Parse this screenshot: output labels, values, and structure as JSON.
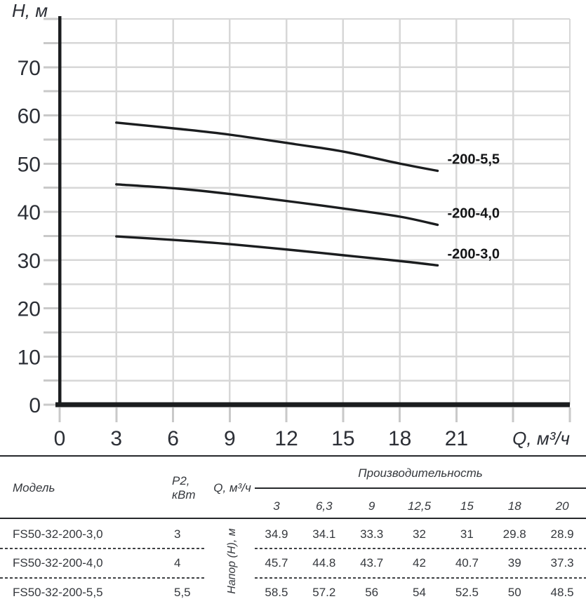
{
  "page": {
    "background": "#ffffff"
  },
  "chart_data": {
    "type": "line",
    "title": "",
    "ylabel": "H, м",
    "xlabel": "Q, м³/ч",
    "xlim": [
      0,
      27
    ],
    "ylim": [
      0,
      80
    ],
    "x_grid_step": 3,
    "y_grid_step": 5,
    "x_ticks_labeled": [
      0,
      3,
      6,
      9,
      12,
      15,
      18,
      21
    ],
    "y_ticks_labeled": [
      0,
      10,
      20,
      30,
      40,
      50,
      60,
      70
    ],
    "grid": true,
    "legend_position": "inline-labels-right-of-curve-end",
    "x": [
      3,
      6.3,
      9,
      12.5,
      15,
      18,
      20
    ],
    "series": [
      {
        "name": "-200-5,5",
        "values": [
          58.5,
          57.2,
          56,
          54,
          52.5,
          50,
          48.5
        ]
      },
      {
        "name": "-200-4,0",
        "values": [
          45.7,
          44.8,
          43.7,
          42,
          40.7,
          39,
          37.3
        ]
      },
      {
        "name": "-200-3,0",
        "values": [
          34.9,
          34.1,
          33.3,
          32,
          31,
          29.8,
          28.9
        ]
      }
    ],
    "colors": {
      "curve": "#1b1d1f",
      "grid": "#d7d7d7",
      "tick": "#c9c9c9",
      "text": "#2c2f36"
    }
  },
  "table": {
    "model_header": "Модель",
    "power_header": "P2,\nкВт",
    "flow_header": "Q, м³/ч",
    "performance_header": "Производительность",
    "flow_columns": [
      "3",
      "6,3",
      "9",
      "12,5",
      "15",
      "18",
      "20"
    ],
    "row_group_label": "Напор (H), м",
    "rows": [
      {
        "model": "FS50-32-200-3,0",
        "power": "3",
        "values": [
          "34.9",
          "34.1",
          "33.3",
          "32",
          "31",
          "29.8",
          "28.9"
        ]
      },
      {
        "model": "FS50-32-200-4,0",
        "power": "4",
        "values": [
          "45.7",
          "44.8",
          "43.7",
          "42",
          "40.7",
          "39",
          "37.3"
        ]
      },
      {
        "model": "FS50-32-200-5,5",
        "power": "5,5",
        "values": [
          "58.5",
          "57.2",
          "56",
          "54",
          "52.5",
          "50",
          "48.5"
        ]
      }
    ]
  }
}
